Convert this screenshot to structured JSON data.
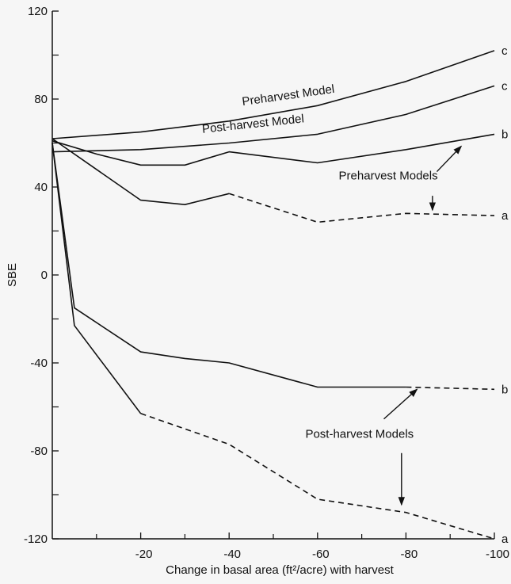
{
  "chart_data": {
    "type": "line",
    "xlabel": "Change in basal area (ft²/acre) with harvest",
    "ylabel": "SBE",
    "xlim": [
      0,
      -100
    ],
    "ylim": [
      -120,
      120
    ],
    "x_ticks": [
      "-20",
      "-40",
      "-60",
      "-80",
      "-100"
    ],
    "y_ticks": [
      "120",
      "80",
      "40",
      "0",
      "-40",
      "-80",
      "-120"
    ],
    "series": [
      {
        "x": [
          0,
          -20,
          -40,
          -60,
          -80,
          -100
        ],
        "y": [
          62,
          65,
          70,
          77,
          88,
          102
        ],
        "style": "solid",
        "end_label": "c"
      },
      {
        "x": [
          0,
          -20,
          -40,
          -60,
          -80,
          -100
        ],
        "y": [
          56,
          57,
          60,
          64,
          73,
          86
        ],
        "style": "solid",
        "end_label": "c"
      },
      {
        "x": [
          0,
          -10,
          -20,
          -30,
          -40,
          -60,
          -80,
          -100
        ],
        "y": [
          61,
          55,
          50,
          50,
          56,
          51,
          57,
          64
        ],
        "style": "solid",
        "end_label": "b"
      },
      {
        "x": [
          0,
          -10,
          -20,
          -30,
          -40,
          -60,
          -80,
          -100
        ],
        "y": [
          62,
          48,
          34,
          32,
          37,
          24,
          28,
          27
        ],
        "style": "solid-then-dashed",
        "dash_from": -40,
        "end_label": "a"
      },
      {
        "x": [
          0,
          -5,
          -20,
          -30,
          -40,
          -60,
          -80,
          -100
        ],
        "y": [
          60,
          -15,
          -35,
          -38,
          -40,
          -51,
          -51,
          -52
        ],
        "style": "solid-then-dashed",
        "dash_from": -80,
        "end_label": "b"
      },
      {
        "x": [
          0,
          -5,
          -20,
          -40,
          -60,
          -80,
          -100
        ],
        "y": [
          60,
          -23,
          -63,
          -77,
          -102,
          -108,
          -120
        ],
        "style": "solid-then-dashed",
        "dash_from": -20,
        "end_label": "a"
      }
    ],
    "annotations": [
      {
        "text": "Preharvest Model",
        "near_series": 0
      },
      {
        "text": "Post-harvest Model",
        "near_series": 1
      },
      {
        "text": "Preharvest Models",
        "arrows_to": [
          2,
          3
        ]
      },
      {
        "text": "Post-harvest Models",
        "arrows_to": [
          4,
          5
        ]
      }
    ],
    "grid": false,
    "legend": "none"
  }
}
